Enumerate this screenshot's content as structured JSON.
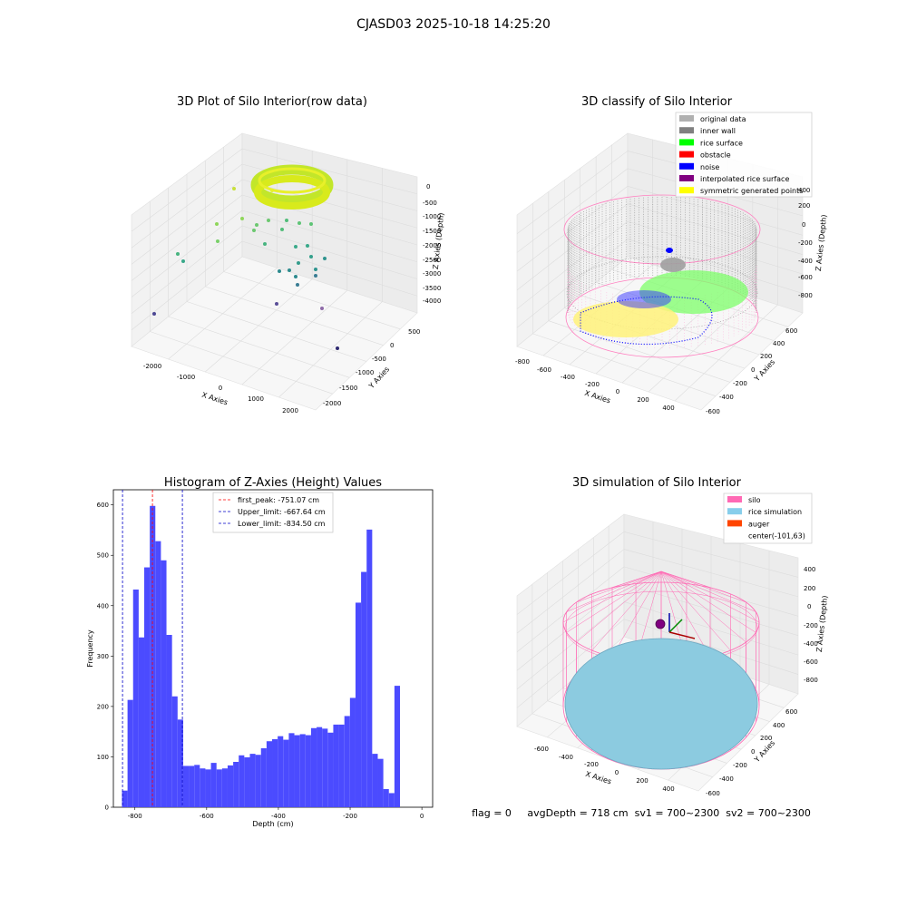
{
  "suptitle": "CJASD03 2025-10-18 14:25:20",
  "panel_titles": {
    "raw": "3D Plot of Silo Interior(row data)",
    "classify": "3D classify of Silo Interior",
    "hist": "Histogram of Z-Axies (Height) Values",
    "sim": "3D simulation of Silo Interior"
  },
  "raw3d": {
    "xlabel": "X Axies",
    "ylabel": "Y Axies",
    "zlabel": "Z Axies (Depth)",
    "xticks": [
      "-2000",
      "-1000",
      "0",
      "1000",
      "2000"
    ],
    "yticks": [
      "500",
      "0",
      "-500",
      "-1000",
      "-1500",
      "-2000"
    ],
    "zticks": [
      "0",
      "-500",
      "-1000",
      "-1500",
      "-2000",
      "-2500",
      "-3000",
      "-3500",
      "-4000"
    ]
  },
  "classify3d": {
    "xlabel": "X Axies",
    "ylabel": "Y Axies",
    "zlabel": "Z Axies (Depth)",
    "xticks": [
      "-800",
      "-600",
      "-400",
      "-200",
      "0",
      "200",
      "400"
    ],
    "yticks": [
      "600",
      "400",
      "200",
      "0",
      "-200",
      "-400",
      "-600"
    ],
    "zticks": [
      "400",
      "200",
      "0",
      "-200",
      "-400",
      "-600",
      "-800"
    ],
    "legend": [
      {
        "label": "original data",
        "color": "#b0b0b0"
      },
      {
        "label": "inner wall",
        "color": "#808080"
      },
      {
        "label": "rice surface",
        "color": "#00ff00"
      },
      {
        "label": "obstacle",
        "color": "#ff0000"
      },
      {
        "label": "noise",
        "color": "#0000ff"
      },
      {
        "label": "interpolated rice surface",
        "color": "#800080"
      },
      {
        "label": "symmetric generated points",
        "color": "#ffff00"
      }
    ]
  },
  "sim3d": {
    "xlabel": "X Axies",
    "ylabel": "Y Axies",
    "zlabel": "Z Axies (Depth)",
    "xticks": [
      "-600",
      "-400",
      "-200",
      "0",
      "200",
      "400"
    ],
    "yticks": [
      "600",
      "400",
      "200",
      "0",
      "-200",
      "-400",
      "-600"
    ],
    "zticks": [
      "400",
      "200",
      "0",
      "-200",
      "-400",
      "-600",
      "-800"
    ],
    "legend": [
      {
        "label": "silo",
        "color": "#ff69b4"
      },
      {
        "label": "rice simulation",
        "color": "#87ceeb"
      },
      {
        "label": "auger",
        "color": "#ff4500"
      },
      {
        "label": "center(-101,63)",
        "color": ""
      }
    ]
  },
  "status_line": "flag = 0     avgDepth = 718 cm  sv1 = 700~2300  sv2 = 700~2300",
  "chart_data": {
    "type": "bar",
    "title": "Histogram of Z-Axies (Height) Values",
    "xlabel": "Depth (cm)",
    "ylabel": "Frequency",
    "xlim": [
      -860,
      30
    ],
    "ylim": [
      0,
      630
    ],
    "xticks": [
      -800,
      -600,
      -400,
      -200,
      0
    ],
    "yticks": [
      0,
      100,
      200,
      300,
      400,
      500,
      600
    ],
    "bin_start": -836,
    "bin_width": 15.5,
    "values": [
      33,
      213,
      432,
      337,
      476,
      598,
      528,
      490,
      342,
      220,
      174,
      82,
      82,
      84,
      77,
      75,
      88,
      75,
      77,
      83,
      90,
      103,
      99,
      106,
      104,
      117,
      131,
      135,
      141,
      134,
      147,
      143,
      145,
      143,
      157,
      159,
      156,
      148,
      164,
      164,
      181,
      217,
      406,
      467,
      551,
      106,
      96,
      36,
      28,
      241
    ],
    "bar_color": "#4b4bff",
    "lines": [
      {
        "label": "first_peak: -751.07 cm",
        "value": -751.07,
        "color": "#ff0000"
      },
      {
        "label": "Upper_limit: -667.64 cm",
        "value": -667.64,
        "color": "#0000c8"
      },
      {
        "label": "Lower_limit: -834.50 cm",
        "value": -834.5,
        "color": "#0000c8"
      }
    ]
  }
}
